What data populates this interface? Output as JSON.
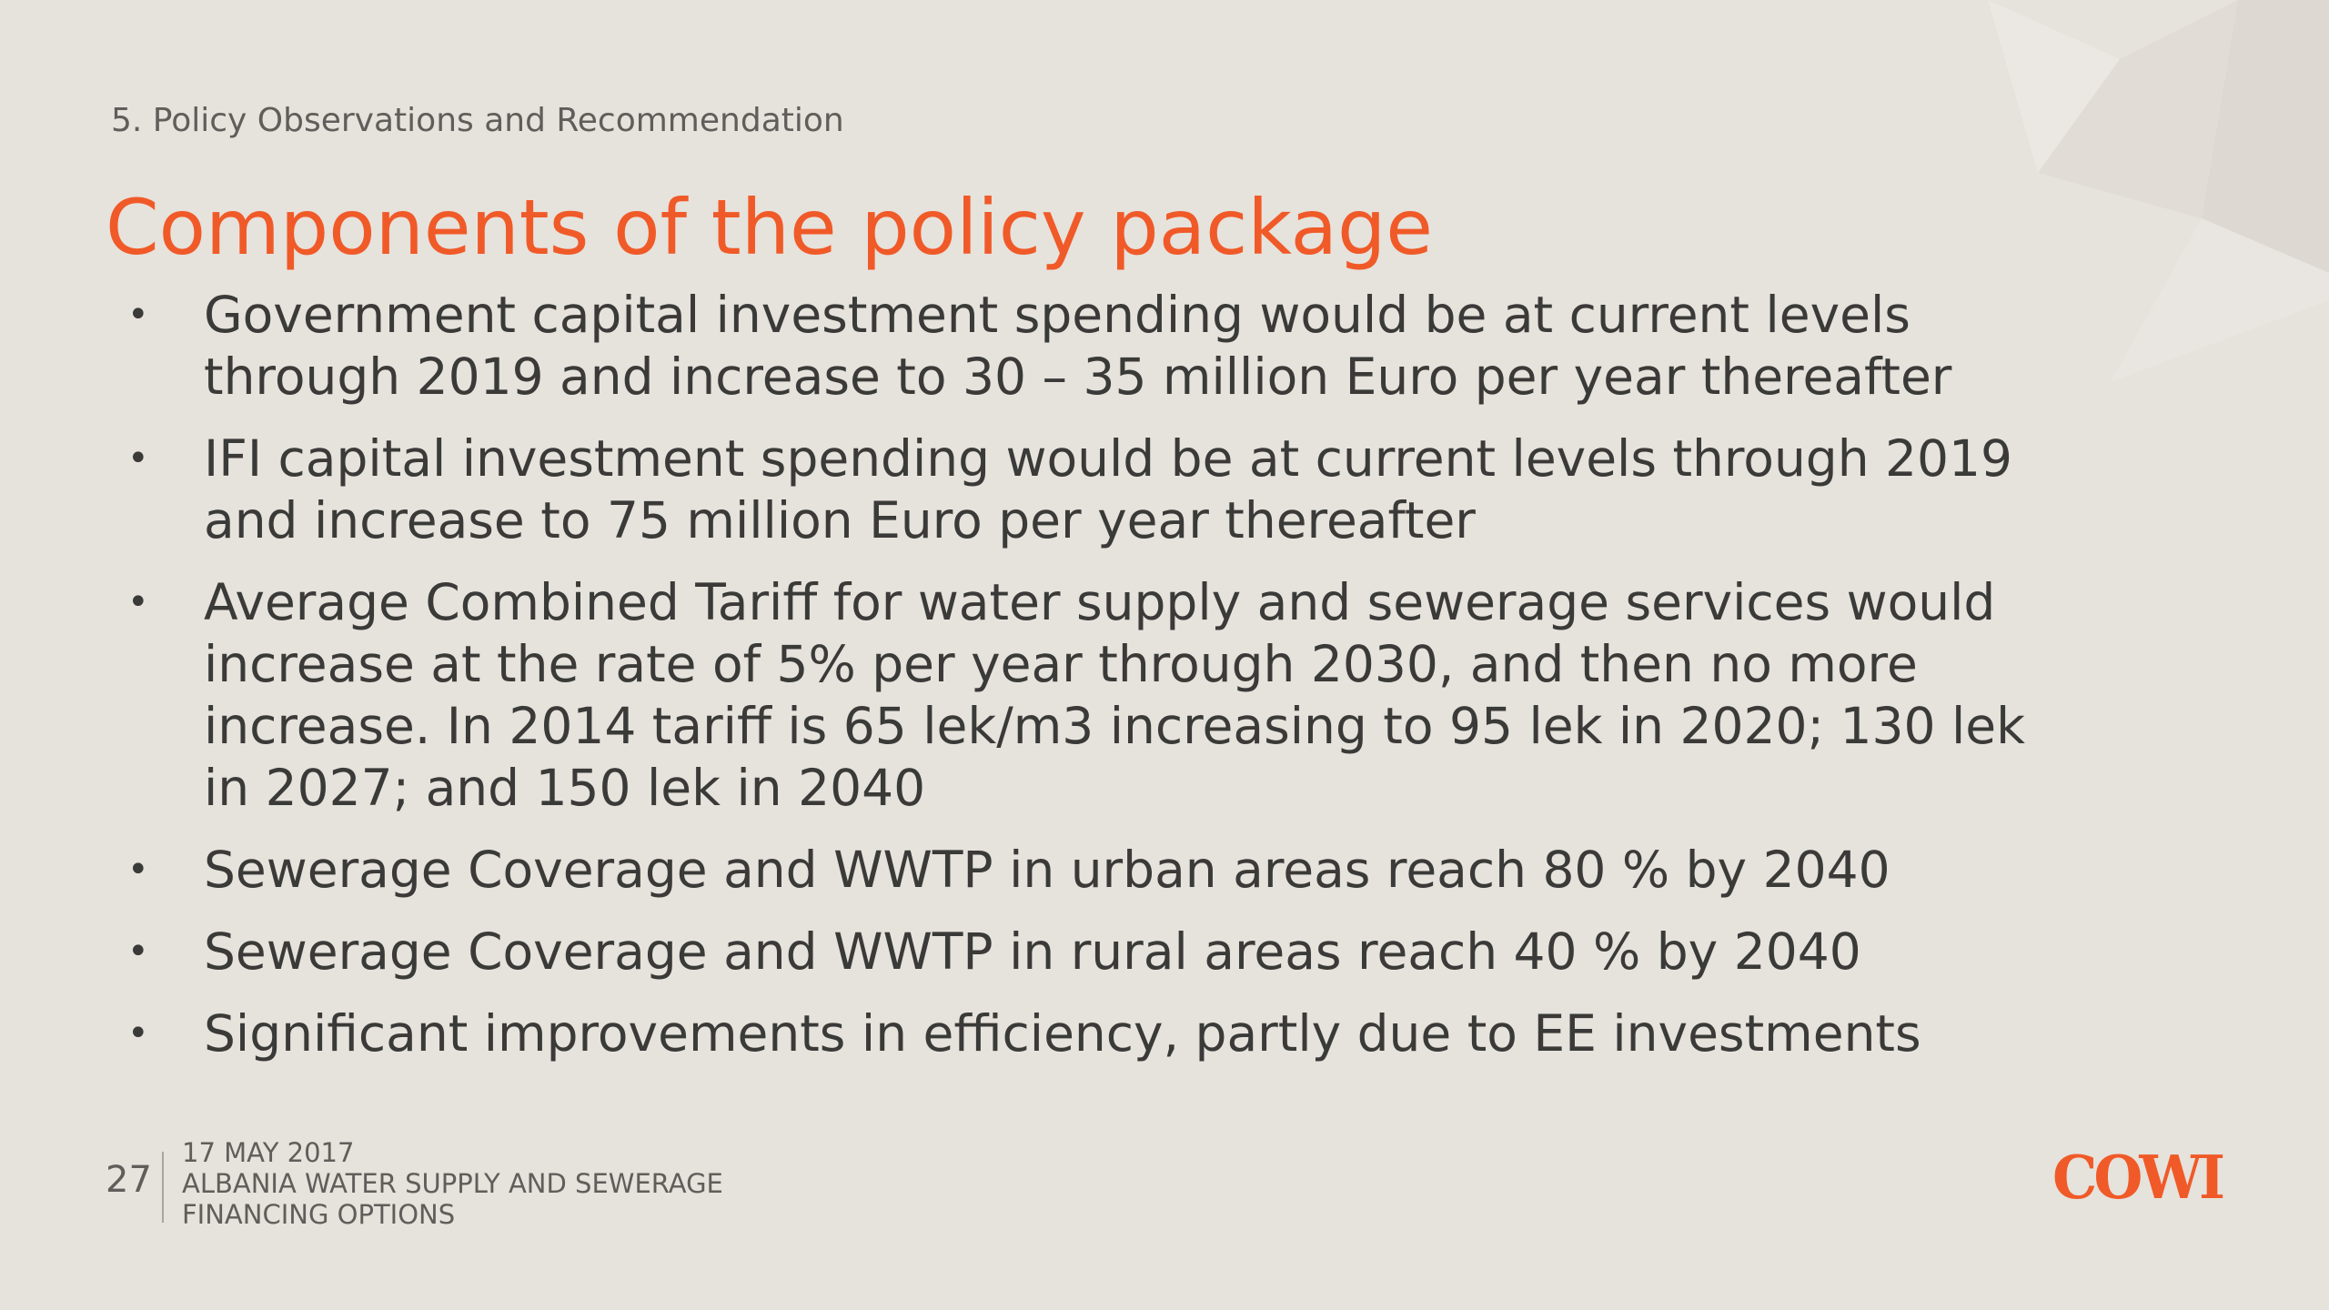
{
  "slide": {
    "section": "5. Policy Observations and Recommendation",
    "title": "Components of the policy package",
    "bullets": [
      {
        "text": "Government capital investment spending would be at current levels through 2019 and increase to 30 – 35 million Euro per year thereafter"
      },
      {
        "text": "IFI capital investment spending would be at current levels through 2019 and increase to 75 million Euro per year thereafter"
      },
      {
        "text": "Average Combined Tariff for water supply and sewerage services would increase at the rate of 5% per year through 2030, and then no more increase. In 2014 tariff is 65 lek/m3 increasing to 95 lek in 2020; 130 lek in 2027; and 150 lek in 2040"
      },
      {
        "text": "Sewerage Coverage and WWTP in urban areas reach 80 % by 2040"
      },
      {
        "text": "Sewerage Coverage and WWTP in rural areas reach 40 % by 2040"
      },
      {
        "text": "Significant improvements in efficiency, partly due to EE investments"
      }
    ],
    "bullet_marker": "•"
  },
  "footer": {
    "page_number": "27",
    "date": "17 MAY 2017",
    "doc_title_line1": "ALBANIA WATER SUPPLY AND SEWERAGE",
    "doc_title_line2": "FINANCING OPTIONS"
  },
  "logo": {
    "text": "COWI"
  },
  "colors": {
    "background": "#e6e2dc",
    "accent": "#f05a28",
    "body_text": "#3a3a38",
    "muted_text": "#5f5e5a"
  }
}
